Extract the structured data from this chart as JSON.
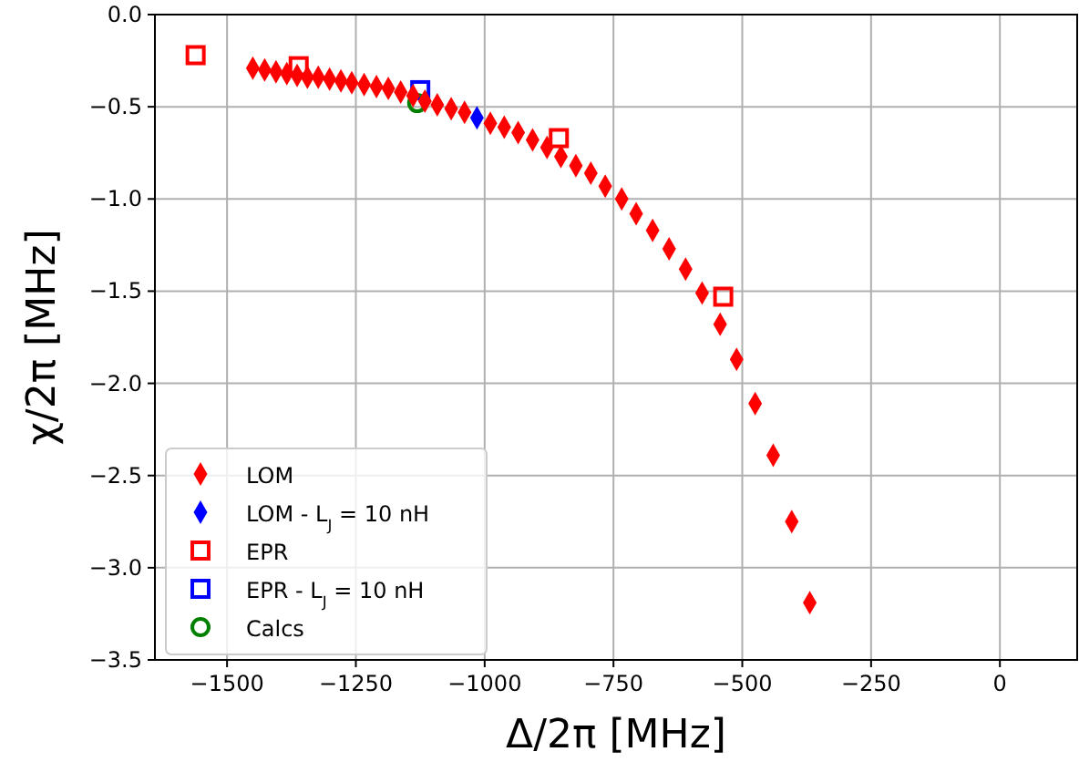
{
  "chart_data": {
    "type": "scatter",
    "xlabel": "Δ/2π [MHz]",
    "ylabel": "χ/2π [MHz]",
    "xlim": [
      -1640,
      150
    ],
    "ylim": [
      -3.5,
      0
    ],
    "xticks": [
      {
        "value": -1500,
        "label": "−1500"
      },
      {
        "value": -1250,
        "label": "−1250"
      },
      {
        "value": -1000,
        "label": "−1000"
      },
      {
        "value": -750,
        "label": "−750"
      },
      {
        "value": -500,
        "label": "−500"
      },
      {
        "value": -250,
        "label": "−250"
      },
      0
    ],
    "yticks": [
      {
        "value": 0,
        "label": "0.0"
      },
      {
        "value": -0.5,
        "label": "−0.5"
      },
      {
        "value": -1,
        "label": "−1.0"
      },
      {
        "value": -1.5,
        "label": "−1.5"
      },
      {
        "value": -2,
        "label": "−2.0"
      },
      {
        "value": -2.5,
        "label": "−2.5"
      },
      {
        "value": -3,
        "label": "−3.0"
      },
      {
        "value": -3.5,
        "label": "−3.5"
      }
    ],
    "grid": true,
    "legend": "bottom left",
    "series": [
      {
        "name": "LOM",
        "color": "#ff0000",
        "marker": "diamond",
        "x": [
          -1450,
          -1427,
          -1405,
          -1384,
          -1364,
          -1344,
          -1323,
          -1301,
          -1279,
          -1258,
          -1234,
          -1210,
          -1187,
          -1163,
          -1139,
          -1116,
          -1092,
          -1065,
          -1039,
          -989,
          -962,
          -935,
          -907,
          -879,
          -852,
          -823,
          -794,
          -766,
          -734,
          -706,
          -674,
          -642,
          -610,
          -578,
          -543,
          -511,
          -475,
          -440,
          -404,
          -369
        ],
        "values": [
          -0.29,
          -0.3,
          -0.31,
          -0.32,
          -0.33,
          -0.34,
          -0.34,
          -0.35,
          -0.36,
          -0.37,
          -0.38,
          -0.39,
          -0.4,
          -0.42,
          -0.44,
          -0.47,
          -0.49,
          -0.51,
          -0.53,
          -0.59,
          -0.61,
          -0.64,
          -0.68,
          -0.72,
          -0.77,
          -0.82,
          -0.86,
          -0.93,
          -1.0,
          -1.08,
          -1.17,
          -1.27,
          -1.38,
          -1.51,
          -1.68,
          -1.87,
          -2.11,
          -2.39,
          -2.75,
          -3.19
        ]
      },
      {
        "name": "LOM - L$_{J}$ = 10 nH",
        "color": "#0000ff",
        "marker": "diamond",
        "x": [
          -1015
        ],
        "values": [
          -0.56
        ]
      },
      {
        "name": "EPR",
        "color": "#ff0000",
        "marker": "square",
        "x": [
          -1561,
          -1361,
          -856,
          -537
        ],
        "values": [
          -0.22,
          -0.28,
          -0.67,
          -1.53
        ]
      },
      {
        "name": "EPR - L$_{J}$ = 10 nH",
        "color": "#0000ff",
        "marker": "square",
        "x": [
          -1125
        ],
        "values": [
          -0.41
        ]
      },
      {
        "name": "Calcs",
        "color": "#007f00",
        "marker": "circle",
        "x": [
          -1131
        ],
        "values": [
          -0.48
        ]
      }
    ]
  }
}
